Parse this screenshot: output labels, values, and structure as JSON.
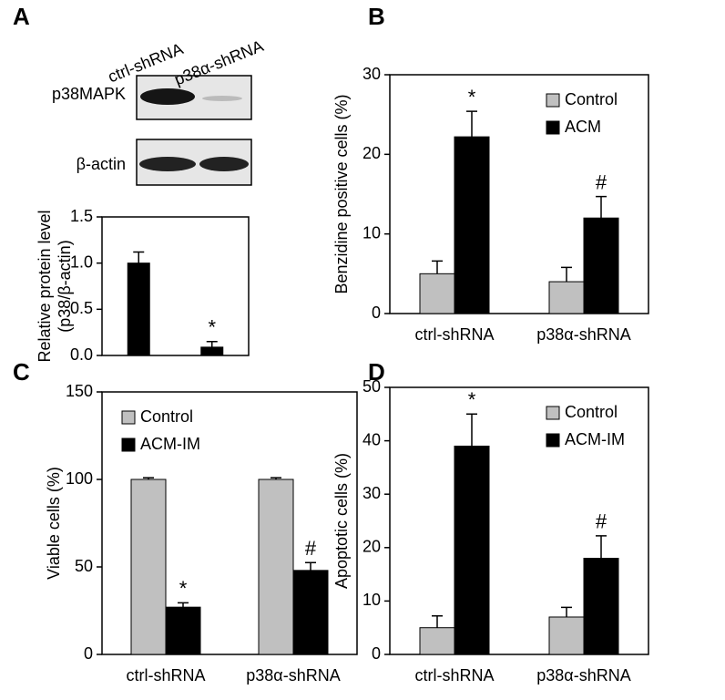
{
  "chart_data": [
    {
      "type": "bar",
      "panel": "A",
      "blot_labels": [
        "p38MAPK",
        "β-actin"
      ],
      "categories": [
        "ctrl-shRNA",
        "p38α-shRNA"
      ],
      "y_label": [
        "Relative protein level",
        "(p38/β-actin)"
      ],
      "ylim": [
        0,
        1.5
      ],
      "yticks": [
        {
          "value": 0,
          "label": "0.0"
        },
        0.5,
        {
          "value": 1,
          "label": "1.0"
        },
        1.5
      ],
      "series": [
        {
          "color": "#000000",
          "values": [
            1.0,
            0.09
          ],
          "errors": [
            0.12,
            0.06
          ],
          "annotations": [
            null,
            "*"
          ]
        }
      ]
    },
    {
      "type": "bar",
      "panel": "B",
      "categories": [
        "ctrl-shRNA",
        "p38α-shRNA"
      ],
      "y_label": "Benzidine positive cells (%)",
      "ylim": [
        0,
        30
      ],
      "yticks": [
        0,
        10,
        20,
        30
      ],
      "legend": "upper right",
      "series": [
        {
          "name": "Control",
          "color": "#c0c0c0",
          "values": [
            5,
            4
          ],
          "errors": [
            1.6,
            1.8
          ],
          "annotations": [
            null,
            null
          ]
        },
        {
          "name": "ACM",
          "color": "#000000",
          "values": [
            22.2,
            12
          ],
          "errors": [
            3.2,
            2.7
          ],
          "annotations": [
            "*",
            "#"
          ]
        }
      ]
    },
    {
      "type": "bar",
      "panel": "C",
      "categories": [
        "ctrl-shRNA",
        "p38α-shRNA"
      ],
      "y_label": "Viable cells (%)",
      "ylim": [
        0,
        150
      ],
      "yticks": [
        0,
        50,
        100,
        150
      ],
      "legend": "upper left",
      "series": [
        {
          "name": "Control",
          "color": "#c0c0c0",
          "values": [
            100,
            100
          ],
          "errors": [
            1,
            1
          ],
          "annotations": [
            null,
            null
          ]
        },
        {
          "name": "ACM-IM",
          "color": "#000000",
          "values": [
            27,
            48
          ],
          "errors": [
            2.5,
            4.5
          ],
          "annotations": [
            "*",
            "#"
          ]
        }
      ]
    },
    {
      "type": "bar",
      "panel": "D",
      "categories": [
        "ctrl-shRNA",
        "p38α-shRNA"
      ],
      "y_label": "Apoptotic cells (%)",
      "ylim": [
        0,
        50
      ],
      "yticks": [
        0,
        10,
        20,
        30,
        40,
        50
      ],
      "legend": "upper right",
      "series": [
        {
          "name": "Control",
          "color": "#c0c0c0",
          "values": [
            5,
            7
          ],
          "errors": [
            2.2,
            1.8
          ],
          "annotations": [
            null,
            null
          ]
        },
        {
          "name": "ACM-IM",
          "color": "#000000",
          "values": [
            39,
            18
          ],
          "errors": [
            6,
            4.2
          ],
          "annotations": [
            "*",
            "#"
          ]
        }
      ]
    }
  ]
}
